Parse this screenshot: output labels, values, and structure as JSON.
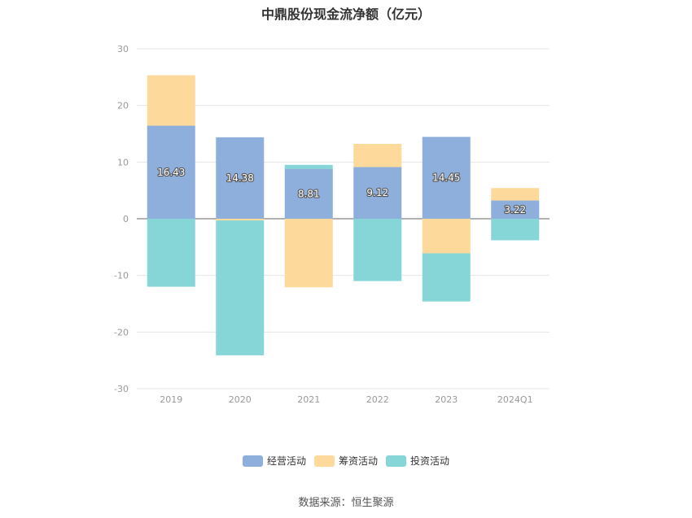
{
  "chart_data": {
    "type": "bar",
    "stacked": true,
    "title": "中鼎股份现金流净额（亿元）",
    "xlabel": "",
    "ylabel": "",
    "categories": [
      "2019",
      "2020",
      "2021",
      "2022",
      "2023",
      "2024Q1"
    ],
    "ylim": [
      -30,
      30
    ],
    "yticks": [
      30,
      20,
      10,
      0,
      -10,
      -20,
      -30
    ],
    "grid": true,
    "legend_position": "bottom",
    "series": [
      {
        "name": "经营活动",
        "color": "#8eaedc",
        "values": [
          16.43,
          14.38,
          8.81,
          9.12,
          14.45,
          3.22
        ],
        "labels": [
          "16.43",
          "14.38",
          "8.81",
          "9.12",
          "14.45",
          "3.22"
        ]
      },
      {
        "name": "筹资活动",
        "color": "#fdd99b",
        "values": [
          8.9,
          -0.3,
          -12.1,
          4.1,
          -6.1,
          2.2
        ]
      },
      {
        "name": "投资活动",
        "color": "#86d5d7",
        "values": [
          -12.0,
          -23.8,
          0.7,
          -11.0,
          -8.5,
          -3.8
        ]
      }
    ]
  },
  "source": "数据来源：恒生聚源"
}
